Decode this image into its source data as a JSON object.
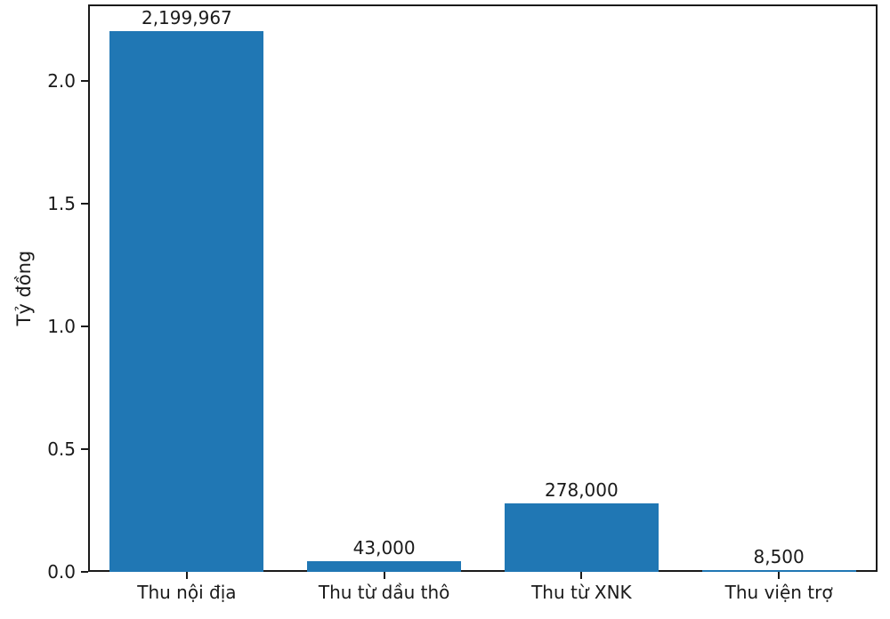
{
  "chart_data": {
    "type": "bar",
    "title": "",
    "xlabel": "",
    "ylabel": "Tỷ đồng",
    "categories": [
      "Thu nội địa",
      "Thu từ dầu thô",
      "Thu từ XNK",
      "Thu viện trợ"
    ],
    "values": [
      2199967,
      43000,
      278000,
      8500
    ],
    "value_labels": [
      "2,199,967",
      "43,000",
      "278,000",
      "8,500"
    ],
    "value_scale_divisor": 1000000,
    "y_ticks": [
      {
        "label": "0.0",
        "value": 0.0
      },
      {
        "label": "0.5",
        "value": 0.5
      },
      {
        "label": "1.0",
        "value": 1.0
      },
      {
        "label": "1.5",
        "value": 1.5
      },
      {
        "label": "2.0",
        "value": 2.0
      }
    ],
    "ylim": [
      0,
      2.31
    ],
    "grid": false,
    "legend_position": "none",
    "bar_color": "#2077b4",
    "frame_color": "#1a1a1a",
    "background_color": "#ffffff"
  }
}
